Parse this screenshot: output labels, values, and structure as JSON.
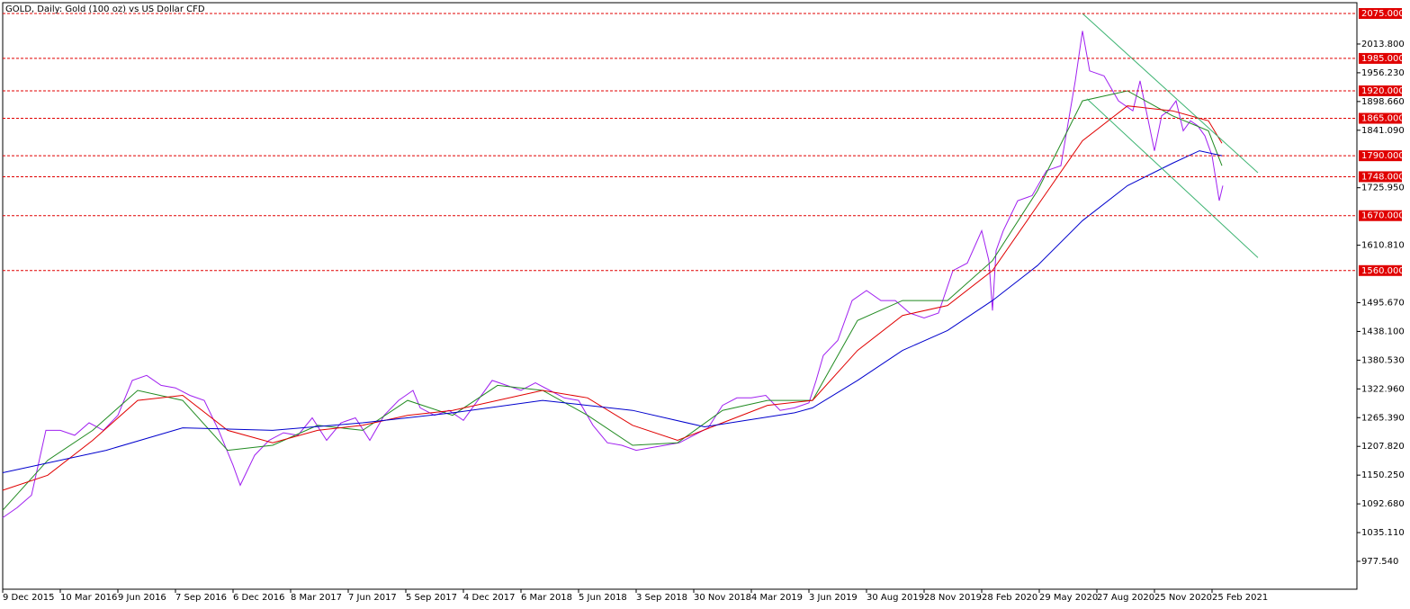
{
  "chart_data": {
    "type": "line",
    "title": "GOLD, Daily:  Gold (100 oz) vs US Dollar CFD",
    "xlim": [
      0,
      1505
    ],
    "ylim": [
      921.7,
      2096.6
    ],
    "xticks": [
      {
        "value": 0,
        "label": "9 Dec 2015"
      },
      {
        "value": 64,
        "label": "10 Mar 2016"
      },
      {
        "value": 128,
        "label": "9 Jun 2016"
      },
      {
        "value": 192,
        "label": "7 Sep 2016"
      },
      {
        "value": 256,
        "label": "6 Dec 2016"
      },
      {
        "value": 320,
        "label": "8 Mar 2017"
      },
      {
        "value": 384,
        "label": "7 Jun 2017"
      },
      {
        "value": 448,
        "label": "5 Sep 2017"
      },
      {
        "value": 512,
        "label": "4 Dec 2017"
      },
      {
        "value": 576,
        "label": "6 Mar 2018"
      },
      {
        "value": 640,
        "label": "5 Jun 2018"
      },
      {
        "value": 704,
        "label": "3 Sep 2018"
      },
      {
        "value": 768,
        "label": "30 Nov 2018"
      },
      {
        "value": 832,
        "label": "4 Mar 2019"
      },
      {
        "value": 896,
        "label": "3 Jun 2019"
      },
      {
        "value": 960,
        "label": "30 Aug 2019"
      },
      {
        "value": 1024,
        "label": "28 Nov 2019"
      },
      {
        "value": 1088,
        "label": "28 Feb 2020"
      },
      {
        "value": 1152,
        "label": "29 May 2020"
      },
      {
        "value": 1216,
        "label": "27 Aug 2020"
      },
      {
        "value": 1280,
        "label": "25 Nov 2020"
      },
      {
        "value": 1344,
        "label": "25 Feb 2021"
      }
    ],
    "yticks": [
      {
        "value": 2013.8,
        "label": "2013.800"
      },
      {
        "value": 1956.23,
        "label": "1956.230"
      },
      {
        "value": 1898.66,
        "label": "1898.660"
      },
      {
        "value": 1841.09,
        "label": "1841.090"
      },
      {
        "value": 1725.95,
        "label": "1725.950"
      },
      {
        "value": 1610.81,
        "label": "1610.810"
      },
      {
        "value": 1495.67,
        "label": "1495.670"
      },
      {
        "value": 1438.1,
        "label": "1438.100"
      },
      {
        "value": 1380.53,
        "label": "1380.530"
      },
      {
        "value": 1322.96,
        "label": "1322.960"
      },
      {
        "value": 1265.39,
        "label": "1265.390"
      },
      {
        "value": 1207.82,
        "label": "1207.820"
      },
      {
        "value": 1150.25,
        "label": "1150.250"
      },
      {
        "value": 1092.68,
        "label": "1092.680"
      },
      {
        "value": 1035.11,
        "label": "1035.110"
      },
      {
        "value": 977.54,
        "label": "977.540"
      }
    ],
    "levels": {
      "color": "#e00000",
      "values": [
        {
          "value": 2075,
          "label": "2075.000"
        },
        {
          "value": 1985,
          "label": "1985.000"
        },
        {
          "value": 1920,
          "label": "1920.000"
        },
        {
          "value": 1865,
          "label": "1865.000"
        },
        {
          "value": 1790,
          "label": "1790.000"
        },
        {
          "value": 1748,
          "label": "1748.000"
        },
        {
          "value": 1670,
          "label": "1670.000"
        },
        {
          "value": 1560,
          "label": "1560.000"
        }
      ]
    },
    "trend_lines": {
      "color": "#3cb371",
      "lines": [
        {
          "x": [
            1200,
            1395
          ],
          "values": [
            2075,
            1756
          ]
        },
        {
          "x": [
            1205,
            1395
          ],
          "values": [
            1904,
            1586
          ]
        }
      ]
    },
    "series": [
      {
        "color": "#a020f0",
        "x": [
          0,
          16,
          32,
          48,
          64,
          80,
          96,
          112,
          128,
          144,
          160,
          176,
          192,
          208,
          224,
          240,
          256,
          264,
          280,
          296,
          312,
          328,
          344,
          360,
          376,
          392,
          408,
          424,
          440,
          456,
          464,
          480,
          496,
          512,
          528,
          544,
          560,
          576,
          592,
          608,
          624,
          640,
          656,
          672,
          688,
          704,
          720,
          736,
          752,
          768,
          784,
          800,
          816,
          832,
          848,
          864,
          880,
          896,
          904,
          912,
          928,
          944,
          960,
          976,
          992,
          1008,
          1024,
          1040,
          1056,
          1072,
          1088,
          1096,
          1100,
          1104,
          1112,
          1128,
          1144,
          1160,
          1176,
          1192,
          1200,
          1208,
          1224,
          1240,
          1256,
          1264,
          1272,
          1280,
          1288,
          1296,
          1304,
          1312,
          1320,
          1328,
          1336,
          1344,
          1352,
          1356
        ],
        "values": [
          1065,
          1085,
          1110,
          1240,
          1240,
          1230,
          1255,
          1240,
          1270,
          1340,
          1350,
          1330,
          1325,
          1310,
          1300,
          1240,
          1170,
          1130,
          1190,
          1220,
          1235,
          1230,
          1265,
          1220,
          1255,
          1265,
          1220,
          1270,
          1300,
          1320,
          1285,
          1270,
          1280,
          1260,
          1300,
          1340,
          1330,
          1320,
          1335,
          1320,
          1305,
          1300,
          1250,
          1215,
          1210,
          1200,
          1205,
          1210,
          1215,
          1230,
          1245,
          1290,
          1305,
          1305,
          1310,
          1280,
          1285,
          1295,
          1340,
          1390,
          1420,
          1500,
          1520,
          1500,
          1500,
          1475,
          1465,
          1475,
          1560,
          1575,
          1640,
          1580,
          1480,
          1600,
          1640,
          1700,
          1710,
          1760,
          1770,
          1940,
          2040,
          1960,
          1950,
          1900,
          1880,
          1940,
          1870,
          1800,
          1870,
          1880,
          1900,
          1840,
          1860,
          1850,
          1830,
          1790,
          1700,
          1730
        ]
      },
      {
        "color": "#228b22",
        "x": [
          0,
          50,
          100,
          150,
          200,
          250,
          300,
          350,
          400,
          450,
          500,
          550,
          600,
          650,
          700,
          750,
          800,
          850,
          900,
          950,
          1000,
          1050,
          1100,
          1150,
          1200,
          1250,
          1300,
          1340,
          1355
        ],
        "values": [
          1080,
          1180,
          1240,
          1320,
          1300,
          1200,
          1210,
          1250,
          1240,
          1300,
          1270,
          1330,
          1320,
          1270,
          1210,
          1215,
          1280,
          1300,
          1300,
          1460,
          1500,
          1500,
          1580,
          1720,
          1900,
          1920,
          1870,
          1840,
          1770
        ]
      },
      {
        "color": "#e00000",
        "x": [
          0,
          50,
          100,
          150,
          200,
          250,
          300,
          350,
          400,
          450,
          500,
          550,
          600,
          650,
          700,
          750,
          800,
          850,
          900,
          950,
          1000,
          1050,
          1100,
          1150,
          1200,
          1250,
          1300,
          1340,
          1355
        ],
        "values": [
          1120,
          1150,
          1220,
          1300,
          1310,
          1240,
          1215,
          1240,
          1250,
          1270,
          1280,
          1300,
          1320,
          1305,
          1250,
          1220,
          1255,
          1290,
          1300,
          1400,
          1470,
          1490,
          1560,
          1690,
          1820,
          1890,
          1880,
          1860,
          1815
        ]
      },
      {
        "color": "#0000cd",
        "x": [
          0,
          115,
          200,
          300,
          400,
          500,
          600,
          700,
          780,
          880,
          900,
          950,
          1000,
          1050,
          1100,
          1150,
          1200,
          1250,
          1300,
          1330,
          1355
        ],
        "values": [
          1155,
          1200,
          1245,
          1240,
          1255,
          1275,
          1300,
          1280,
          1247,
          1275,
          1285,
          1340,
          1400,
          1440,
          1500,
          1570,
          1660,
          1730,
          1775,
          1800,
          1790
        ]
      }
    ]
  }
}
